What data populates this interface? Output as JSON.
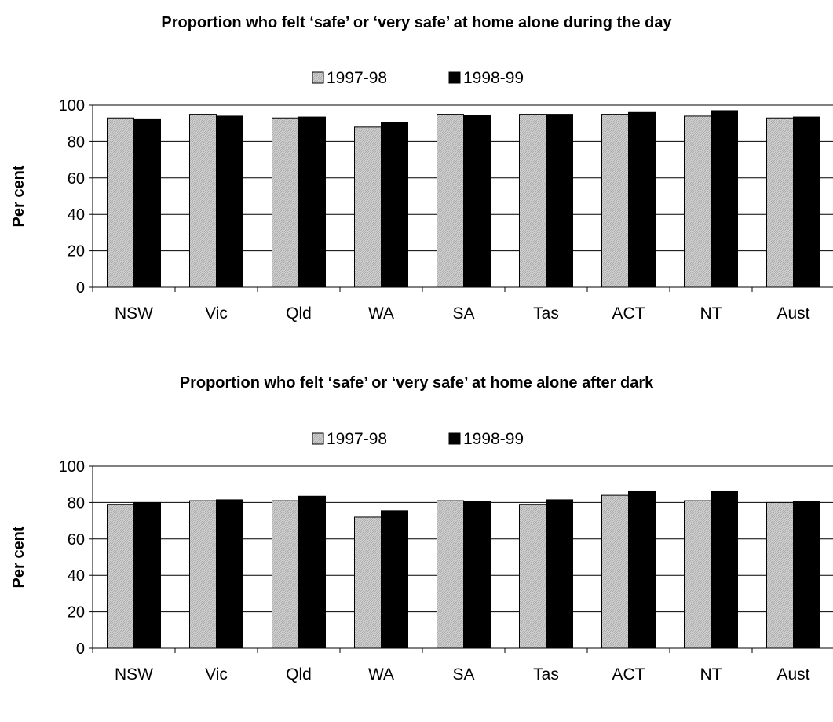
{
  "chart_data": [
    {
      "type": "bar",
      "title": "Proportion who felt ‘safe’ or ‘very safe’ at home alone during the day",
      "ylabel": "Per cent",
      "xlabel": "",
      "categories": [
        "NSW",
        "Vic",
        "Qld",
        "WA",
        "SA",
        "Tas",
        "ACT",
        "NT",
        "Aust"
      ],
      "series": [
        {
          "name": "1997-98",
          "values": [
            93,
            95,
            93,
            88,
            95,
            95,
            95,
            94,
            93
          ]
        },
        {
          "name": "1998-99",
          "values": [
            92.5,
            94,
            93.5,
            90.5,
            94.5,
            95,
            96,
            97,
            93.5
          ]
        }
      ],
      "ylim": [
        0,
        100
      ],
      "yticks": [
        0,
        20,
        40,
        60,
        80,
        100
      ],
      "grid": true,
      "legend_position": "top-center",
      "colors": {
        "1997-98": "#c8c8c8",
        "1998-99": "#000000"
      }
    },
    {
      "type": "bar",
      "title": "Proportion who felt ‘safe’ or ‘very safe’ at home alone after dark",
      "ylabel": "Per cent",
      "xlabel": "",
      "categories": [
        "NSW",
        "Vic",
        "Qld",
        "WA",
        "SA",
        "Tas",
        "ACT",
        "NT",
        "Aust"
      ],
      "series": [
        {
          "name": "1997-98",
          "values": [
            79,
            81,
            81,
            72,
            81,
            79,
            84,
            81,
            80
          ]
        },
        {
          "name": "1998-99",
          "values": [
            80,
            81.5,
            83.5,
            75.5,
            80.5,
            81.5,
            86,
            86,
            80.5
          ]
        }
      ],
      "ylim": [
        0,
        100
      ],
      "yticks": [
        0,
        20,
        40,
        60,
        80,
        100
      ],
      "grid": true,
      "legend_position": "top-center",
      "colors": {
        "1997-98": "#c8c8c8",
        "1998-99": "#000000"
      }
    }
  ]
}
